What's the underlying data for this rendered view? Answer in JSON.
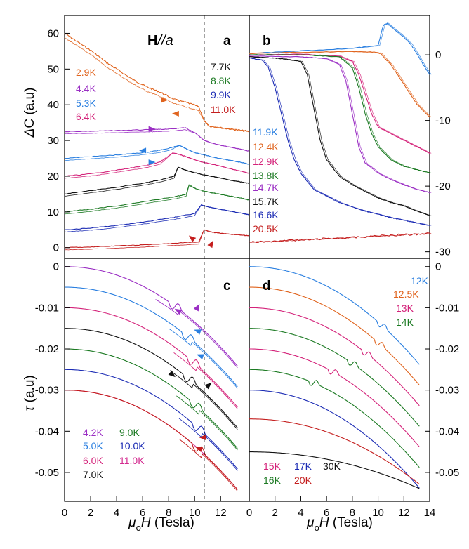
{
  "colors": {
    "red": "#d62020",
    "blue": "#1b2bb4",
    "green": "#1c7a23",
    "black": "#111111",
    "pink": "#d4237a",
    "lightblue": "#2a7fe0",
    "purple": "#9b2fc4",
    "orange": "#e0641e",
    "darkred": "#c41e1e",
    "magenta": "#d32a8f"
  },
  "chart_data": [
    {
      "id": "a",
      "panel_label": "a",
      "type": "line",
      "title": "H//a",
      "title_bold": "H",
      "title_italic": "//a",
      "xlabel": "",
      "ylabel": "ΔC (a.u)",
      "ylabel_delta": "Δ",
      "ylabel_rest": "C (a.u)",
      "xlim": [
        0,
        13.5
      ],
      "ylim": [
        -3,
        65
      ],
      "yticks": [
        0,
        10,
        20,
        30,
        40,
        50,
        60
      ],
      "ytick_labels": [
        "0",
        "10",
        "20",
        "30",
        "40",
        "50",
        "60"
      ],
      "series": [
        {
          "name": "2.9K",
          "color": "#e0641e",
          "transition": 10.2,
          "x": [
            0,
            1,
            2,
            3,
            4,
            5,
            6,
            7,
            8,
            9,
            9.8,
            10.2,
            10.6,
            11.5,
            12.5,
            13.5
          ],
          "y": [
            60,
            57.5,
            55,
            52,
            49.5,
            47,
            45,
            43.5,
            41.5,
            40.5,
            39.5,
            35.5,
            34,
            33.5,
            33,
            32.5
          ]
        },
        {
          "name": "4.4K",
          "color": "#9b2fc4",
          "transition": 9.6,
          "x": [
            0,
            2,
            4,
            6,
            7,
            8,
            8.8,
            9.6,
            10.2,
            11,
            12,
            13,
            13.5
          ],
          "y": [
            32.5,
            32.6,
            32.8,
            33,
            33.1,
            33.3,
            33.6,
            32,
            30,
            29,
            28.2,
            27.5,
            27
          ]
        },
        {
          "name": "5.3K",
          "color": "#2a7fe0",
          "transition": 8.4,
          "x": [
            0,
            2,
            4,
            6,
            7,
            7.8,
            8.4,
            9,
            9.6,
            10.2,
            11,
            12,
            13,
            13.5
          ],
          "y": [
            25,
            25.5,
            26,
            26.7,
            27.3,
            28,
            28.6,
            27.5,
            26.5,
            26,
            25.2,
            24.5,
            23.8,
            23.3
          ]
        },
        {
          "name": "6.4K",
          "color": "#d4237a",
          "transition": 7.9,
          "x": [
            0,
            2,
            4,
            6,
            7,
            7.9,
            8.5,
            9.2,
            10,
            11,
            12,
            13,
            13.5
          ],
          "y": [
            20,
            20.7,
            21.8,
            23,
            24,
            26.5,
            26,
            25,
            24,
            23.2,
            22.2,
            21.3,
            20.8
          ]
        },
        {
          "name": "7.7K",
          "color": "#111111",
          "transition": 8.3,
          "x": [
            0,
            2,
            4,
            6,
            7,
            8,
            8.3,
            9,
            9.5,
            10,
            11,
            12,
            13,
            13.5
          ],
          "y": [
            15,
            16,
            17,
            18.2,
            19,
            20,
            22.5,
            21.5,
            21,
            20.5,
            19.8,
            19,
            18.3,
            18
          ]
        },
        {
          "name": "8.8K",
          "color": "#1c7a23",
          "transition": 9.1,
          "x": [
            0,
            2,
            4,
            6,
            8,
            8.9,
            9.1,
            9.6,
            10.2,
            11,
            12,
            13,
            13.5
          ],
          "y": [
            10,
            10.8,
            11.8,
            13,
            14.2,
            15,
            17.5,
            16.5,
            15.8,
            15.2,
            14.5,
            13.8,
            13.3
          ]
        },
        {
          "name": "9.9K",
          "color": "#1b2bb4",
          "transition": 10,
          "x": [
            0,
            2,
            4,
            6,
            8,
            9.5,
            10,
            10.4,
            11,
            12,
            13,
            13.5
          ],
          "y": [
            5,
            5.5,
            6.3,
            7.3,
            8.5,
            9.5,
            12,
            11.5,
            11,
            10.3,
            9.6,
            9.2
          ]
        },
        {
          "name": "11.0K",
          "color": "#c41e1e",
          "transition": 10.2,
          "x": [
            0,
            2,
            4,
            6,
            8,
            9.8,
            10.2,
            10.6,
            11,
            12,
            13,
            13.5
          ],
          "y": [
            0,
            0.2,
            0.5,
            0.8,
            1.2,
            1.6,
            5,
            4.5,
            4.2,
            3.8,
            3.5,
            3.3
          ]
        }
      ],
      "legend": [
        "2.9K",
        "4.4K",
        "5.3K",
        "6.4K",
        "7.7K",
        "8.8K",
        "9.9K",
        "11.0K"
      ]
    },
    {
      "id": "b",
      "panel_label": "b",
      "type": "line",
      "xlabel": "",
      "ylabel": "",
      "xlim": [
        0,
        14
      ],
      "ylim": [
        -31,
        6
      ],
      "yticks": [
        0,
        -10,
        -20,
        -30
      ],
      "ytick_labels": [
        "0",
        "-10",
        "-20",
        "-30"
      ],
      "series": [
        {
          "name": "11.9K",
          "color": "#2a7fe0",
          "x": [
            0,
            4,
            8,
            10,
            10.2,
            10.4,
            10.7,
            11,
            11.5,
            12,
            12.5,
            13,
            13.5,
            14
          ],
          "y": [
            0.2,
            0.6,
            1,
            1.4,
            3,
            4.5,
            4.8,
            4.3,
            3.5,
            2.7,
            1.7,
            0.2,
            -1.5,
            -3
          ]
        },
        {
          "name": "12.4K",
          "color": "#e0641e",
          "x": [
            0,
            4,
            8,
            9.8,
            10.2,
            10.5,
            11,
            11.5,
            12,
            12.5,
            13,
            13.5,
            14
          ],
          "y": [
            0.2,
            0.4,
            0.5,
            0.4,
            0.2,
            -0.5,
            -1.5,
            -3,
            -4.5,
            -6,
            -7.5,
            -8.5,
            -9.5
          ]
        },
        {
          "name": "12.9K",
          "color": "#d4237a",
          "x": [
            0,
            4,
            7,
            8,
            8.5,
            9,
            9.5,
            10,
            11,
            12,
            13,
            14
          ],
          "y": [
            0,
            0.1,
            -0.2,
            -1,
            -3,
            -6,
            -9,
            -11,
            -12,
            -13,
            -14,
            -15
          ]
        },
        {
          "name": "13.8K",
          "color": "#1c7a23",
          "x": [
            0,
            4,
            7,
            8,
            8.5,
            9,
            9.5,
            10,
            11,
            12,
            13,
            14
          ],
          "y": [
            0,
            0,
            -0.3,
            -2,
            -5,
            -9,
            -12,
            -14,
            -16,
            -17,
            -17.5,
            -18
          ]
        },
        {
          "name": "14.7K",
          "color": "#9b2fc4",
          "x": [
            0,
            4,
            6,
            7,
            7.5,
            8,
            8.5,
            9,
            10,
            11,
            12,
            13,
            14
          ],
          "y": [
            -0.2,
            -0.3,
            -0.6,
            -1.5,
            -4,
            -9,
            -14,
            -16.5,
            -18,
            -19,
            -19.8,
            -20.5,
            -21
          ]
        },
        {
          "name": "15.7K",
          "color": "#111111",
          "x": [
            0,
            2,
            3,
            4,
            4.5,
            5,
            5.5,
            6,
            7,
            8,
            9,
            10,
            11,
            12,
            13,
            14
          ],
          "y": [
            -0.3,
            -0.5,
            -0.7,
            -1,
            -3,
            -8,
            -13,
            -16,
            -18.5,
            -19.8,
            -20.8,
            -21.8,
            -22.5,
            -23,
            -23.8,
            -24.5
          ]
        },
        {
          "name": "16.6K",
          "color": "#1b2bb4",
          "x": [
            0,
            1,
            1.5,
            2,
            2.5,
            3,
            3.5,
            4,
            5,
            6,
            7,
            8,
            9,
            10,
            11,
            12,
            13,
            14
          ],
          "y": [
            -0.5,
            -0.8,
            -2,
            -5,
            -9,
            -13,
            -16,
            -18,
            -20.5,
            -21.5,
            -22.5,
            -23.2,
            -23.8,
            -24.3,
            -24.8,
            -25.2,
            -25.6,
            -26
          ]
        },
        {
          "name": "20.5K",
          "color": "#c41e1e",
          "x": [
            0,
            2,
            4,
            6,
            8,
            10,
            12,
            14
          ],
          "y": [
            -28.5,
            -28.4,
            -28.2,
            -28,
            -27.8,
            -27.6,
            -27.4,
            -27.2
          ]
        }
      ],
      "legend": [
        "11.9K",
        "12.4K",
        "12.9K",
        "13.8K",
        "14.7K",
        "15.7K",
        "16.6K",
        "20.5K"
      ]
    },
    {
      "id": "c",
      "panel_label": "c",
      "type": "line",
      "xlabel": "μ0H (Tesla)",
      "xlabel_mu": "μ",
      "xlabel_sub": "o",
      "xlabel_H": "H",
      "xlabel_rest": " (Tesla)",
      "ylabel": "τ (a.u)",
      "ylabel_tau": "τ",
      "ylabel_rest": " (a.u)",
      "xlim": [
        0,
        14.2
      ],
      "ylim": [
        -0.057,
        0.002
      ],
      "xticks": [
        0,
        2,
        4,
        6,
        8,
        10,
        12
      ],
      "xtick_labels": [
        "0",
        "2",
        "4",
        "6",
        "8",
        "10",
        "12"
      ],
      "yticks": [
        0,
        -0.01,
        -0.02,
        -0.03,
        -0.04,
        -0.05
      ],
      "ytick_labels": [
        "0",
        "-0.01",
        "-0.02",
        "-0.03",
        "-0.04",
        "-0.05"
      ],
      "series": [
        {
          "name": "4.2K",
          "color": "#9b2fc4",
          "offset": 0,
          "kink": 8.5
        },
        {
          "name": "5.0K",
          "color": "#2a7fe0",
          "offset": -0.005,
          "kink": 9.5
        },
        {
          "name": "6.0K",
          "color": "#d4237a",
          "offset": -0.01,
          "kink": 9.9
        },
        {
          "name": "7.0K",
          "color": "#111111",
          "offset": -0.015,
          "kink": 9.6
        },
        {
          "name": "9.0K",
          "color": "#1c7a23",
          "offset": -0.02,
          "kink": 10.1
        },
        {
          "name": "10.0K",
          "color": "#1b2bb4",
          "offset": -0.025,
          "kink": 10.3
        },
        {
          "name": "11.0K",
          "color": "#d32a8f",
          "offset": -0.03,
          "kink": null
        },
        {
          "name": "11.0K",
          "color": "#c41e1e",
          "offset": -0.03,
          "kink": 10.3
        }
      ],
      "legend": [
        "4.2K",
        "5.0K",
        "6.0K",
        "7.0K",
        "9.0K",
        "10.0K",
        "11.0K"
      ],
      "curve_model": "y = offset - 0.00012 * x^2.05"
    },
    {
      "id": "d",
      "panel_label": "d",
      "type": "line",
      "xlabel": "μ0H (Tesla)",
      "xlabel_mu": "μ",
      "xlabel_sub": "o",
      "xlabel_H": "H",
      "xlabel_rest": " (Tesla)",
      "ylabel": "",
      "xlim": [
        0,
        14
      ],
      "ylim": [
        -0.057,
        0.002
      ],
      "xticks": [
        0,
        2,
        4,
        6,
        8,
        10,
        12,
        14
      ],
      "xtick_labels": [
        "0",
        "2",
        "4",
        "6",
        "8",
        "10",
        "12",
        "14"
      ],
      "yticks": [
        0,
        -0.01,
        -0.02,
        -0.03,
        -0.04,
        -0.05
      ],
      "ytick_labels": [
        "0",
        "-0.01",
        "-0.02",
        "-0.03",
        "-0.04",
        "-0.05"
      ],
      "series": [
        {
          "name": "12K",
          "color": "#2a7fe0",
          "offset": 0,
          "kink": 10.3
        },
        {
          "name": "12.5K",
          "color": "#e0641e",
          "offset": -0.005,
          "kink": 10.1
        },
        {
          "name": "13K",
          "color": "#d4237a",
          "offset": -0.01,
          "kink": 9.1
        },
        {
          "name": "14K",
          "color": "#1c7a23",
          "offset": -0.015,
          "kink": 8
        },
        {
          "name": "15K",
          "color": "#d4237a",
          "offset": -0.02,
          "kink": 6.5
        },
        {
          "name": "16K",
          "color": "#1c7a23",
          "offset": -0.025,
          "kink": 5
        },
        {
          "name": "17K",
          "color": "#1b2bb4",
          "offset": -0.03,
          "kink": null
        },
        {
          "name": "20K",
          "color": "#c41e1e",
          "offset": -0.037,
          "kink": null
        },
        {
          "name": "30K",
          "color": "#111111",
          "offset": -0.045,
          "kink": null
        }
      ],
      "legend": [
        "12K",
        "12.5K",
        "13K",
        "14K",
        "15K",
        "16K",
        "17K",
        "20K",
        "30K"
      ]
    }
  ],
  "dashed_line_field": 10.2
}
